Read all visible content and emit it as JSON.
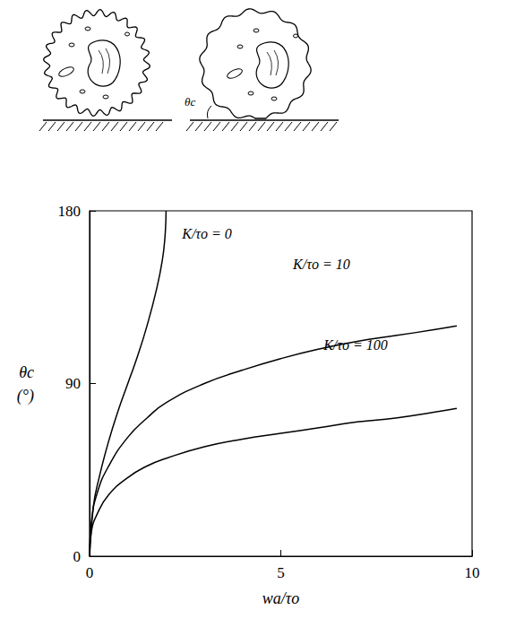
{
  "chart_data": {
    "type": "line",
    "xlabel": "wa/τo",
    "ylabel": "θc",
    "ylabel_unit": "(°)",
    "inset_label": "θc",
    "xlim": [
      0,
      10
    ],
    "xticks": [
      0,
      5,
      10
    ],
    "ylim": [
      0,
      180
    ],
    "yticks": [
      0,
      90,
      180
    ],
    "grid": false,
    "series": [
      {
        "name": "K/τo = 0",
        "color": "#000000",
        "label_position": [
          2.3,
          168
        ],
        "x": [
          0,
          0.1,
          0.25,
          0.5,
          0.75,
          1,
          1.25,
          1.5,
          1.75,
          1.9,
          1.97,
          2.0
        ],
        "values": [
          0,
          26,
          41,
          60,
          76,
          90,
          104,
          120,
          139,
          154,
          166,
          180
        ]
      },
      {
        "name": "K/τo = 10",
        "color": "#000000",
        "label_position": [
          5.2,
          152
        ],
        "x": [
          0,
          0.05,
          0.2,
          0.5,
          1,
          1.5,
          2,
          3,
          4,
          5,
          6,
          7,
          8,
          9,
          9.6
        ],
        "values": [
          0,
          18,
          33,
          47,
          62,
          72,
          80,
          90,
          97,
          103,
          108,
          112,
          115,
          118,
          120
        ]
      },
      {
        "name": "K/τo = 100",
        "color": "#000000",
        "label_position": [
          6.0,
          110
        ],
        "x": [
          0,
          0.05,
          0.2,
          0.5,
          1,
          1.5,
          2,
          3,
          4,
          5,
          6,
          7,
          8,
          9,
          9.6
        ],
        "values": [
          0,
          13,
          22,
          32,
          41,
          47,
          51,
          57,
          61,
          64,
          67,
          70,
          72,
          75,
          77
        ]
      }
    ]
  }
}
